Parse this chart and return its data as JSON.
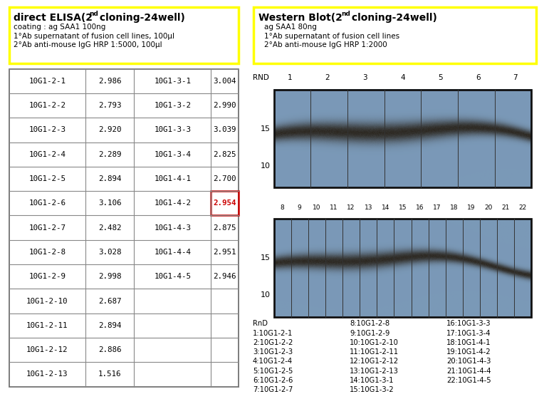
{
  "elisa_line1": "coating : ag SAA1 100ng",
  "elisa_line2": "1°Ab supernatant of fusion cell lines, 100μl",
  "elisa_line3": "2°Ab anti-mouse IgG HRP 1:5000, 100μl",
  "wb_line1": "ag SAA1 80ng",
  "wb_line2": "1°Ab supernatant of fusion cell lines",
  "wb_line3": "2°Ab anti-mouse IgG HRP 1:2000",
  "table_left": [
    [
      "10G1-2-1",
      "2.986"
    ],
    [
      "10G1-2-2",
      "2.793"
    ],
    [
      "10G1-2-3",
      "2.920"
    ],
    [
      "10G1-2-4",
      "2.289"
    ],
    [
      "10G1-2-5",
      "2.894"
    ],
    [
      "10G1-2-6",
      "3.106"
    ],
    [
      "10G1-2-7",
      "2.482"
    ],
    [
      "10G1-2-8",
      "3.028"
    ],
    [
      "10G1-2-9",
      "2.998"
    ],
    [
      "10G1-2-10",
      "2.687"
    ],
    [
      "10G1-2-11",
      "2.894"
    ],
    [
      "10G1-2-12",
      "2.886"
    ],
    [
      "10G1-2-13",
      "1.516"
    ]
  ],
  "table_right": [
    [
      "10G1-3-1",
      "3.004"
    ],
    [
      "10G1-3-2",
      "2.990"
    ],
    [
      "10G1-3-3",
      "3.039"
    ],
    [
      "10G1-3-4",
      "2.825"
    ],
    [
      "10G1-4-1",
      "2.700"
    ],
    [
      "10G1-4-2",
      "2.954"
    ],
    [
      "10G1-4-3",
      "2.875"
    ],
    [
      "10G1-4-4",
      "2.951"
    ],
    [
      "10G1-4-5",
      "2.946"
    ]
  ],
  "highlighted_row": 5,
  "wb_labels_top": [
    "RND",
    "1",
    "2",
    "3",
    "4",
    "5",
    "6",
    "7"
  ],
  "wb_labels_bottom": [
    "8",
    "9",
    "10",
    "11",
    "12",
    "13",
    "14",
    "15",
    "16",
    "17",
    "18",
    "19",
    "20",
    "21",
    "22"
  ],
  "legend_col1": [
    "RnD",
    "1:10G1-2-1",
    "2:10G1-2-2",
    "3:10G1-2-3",
    "4:10G1-2-4",
    "5:10G1-2-5",
    "6:10G1-2-6",
    "7:10G1-2-7"
  ],
  "legend_col2": [
    "8:10G1-2-8",
    "9:10G1-2-9",
    "10:10G1-2-10",
    "11:10G1-2-11",
    "12:10G1-2-12",
    "13:10G1-2-13",
    "14:10G1-3-1",
    "15:10G1-3-2"
  ],
  "legend_col3": [
    "16:10G1-3-3",
    "17:10G1-3-4",
    "18:10G1-4-1",
    "19:10G1-4-2",
    "20:10G1-4-3",
    "21:10G1-4-4",
    "22:10G1-4-5"
  ],
  "bg_color": "#ffffff",
  "yellow_border": "#ffff00",
  "red_color": "#cc0000",
  "blot_bg_r": 0.48,
  "blot_bg_g": 0.6,
  "blot_bg_b": 0.72
}
